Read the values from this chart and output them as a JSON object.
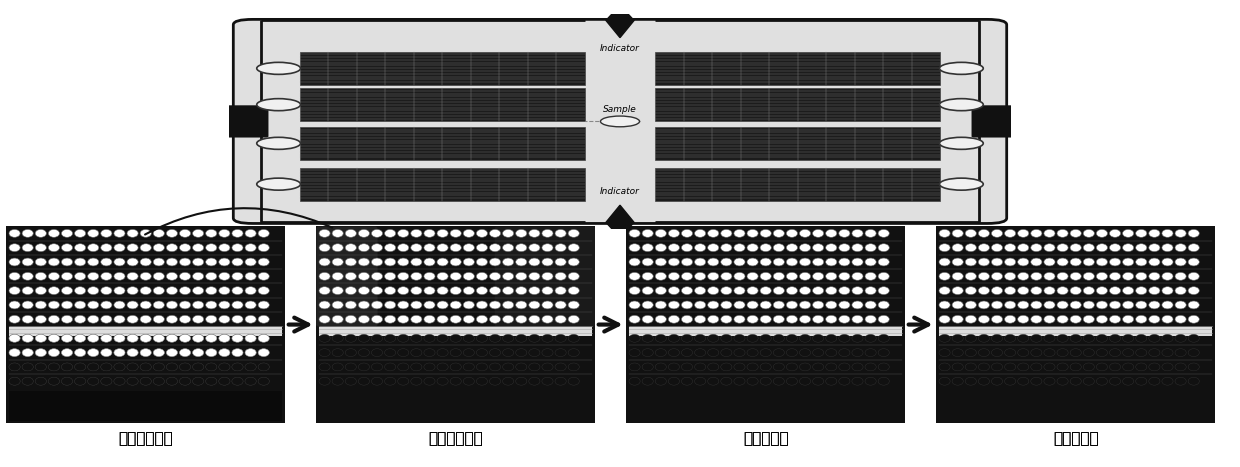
{
  "bg_color": "#ffffff",
  "labels": [
    "指示剂进入前",
    "指示剂进入中",
    "油相分隔中",
    "油相分隔后"
  ],
  "indicator_top": "Indicator",
  "indicator_bottom": "Indicator",
  "sample_label": "Sample",
  "chip_fill": "#e0e0e0",
  "chip_border": "#111111",
  "channel_dark": "#1c1c1c",
  "port_fill": "#f0f0f0",
  "port_border": "#333333",
  "wire_color": "#111111",
  "open_circle_fill": "#ffffff",
  "open_circle_edge": "#666666",
  "filled_circle_fill": "#111111",
  "filled_circle_edge": "#333333",
  "arrow_color": "#111111",
  "label_fontsize": 11
}
